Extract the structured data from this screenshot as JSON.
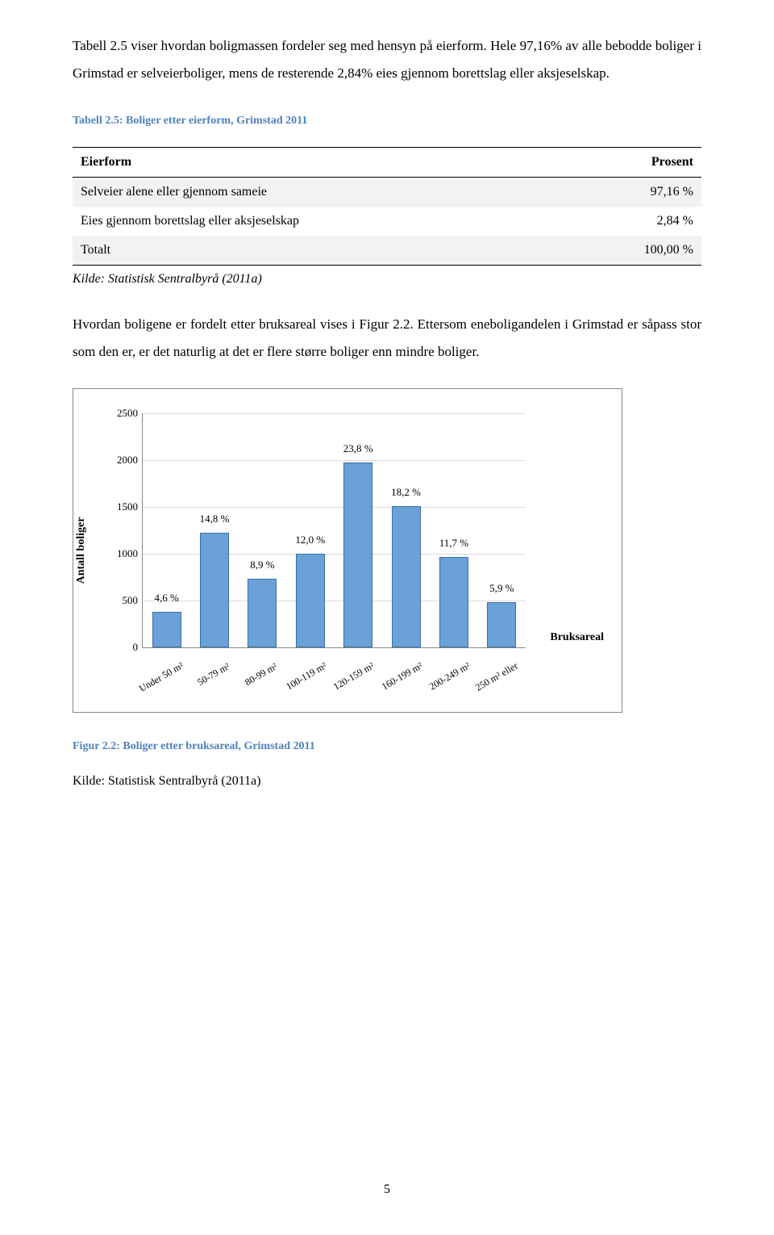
{
  "para1": "Tabell 2.5 viser hvordan boligmassen fordeler seg med hensyn på eierform. Hele 97,16% av alle bebodde boliger i Grimstad er selveierboliger, mens de resterende 2,84% eies gjennom borettslag eller aksjeselskap.",
  "table_caption": "Tabell 2.5: Boliger etter eierform, Grimstad 2011",
  "table": {
    "head_left": "Eierform",
    "head_right": "Prosent",
    "rows": [
      {
        "label": "Selveier alene eller gjennom sameie",
        "value": "97,16 %"
      },
      {
        "label": "Eies gjennom borettslag eller aksjeselskap",
        "value": "2,84 %"
      },
      {
        "label": "Totalt",
        "value": "100,00 %"
      }
    ]
  },
  "table_source": "Kilde: Statistisk Sentralbyrå (2011a)",
  "para2": "Hvordan boligene er fordelt etter bruksareal vises i Figur 2.2. Ettersom eneboligandelen i Grimstad er såpass stor som den er, er det naturlig at det er flere større boliger enn mindre boliger.",
  "chart": {
    "type": "bar",
    "y_axis_label": "Antall boliger",
    "legend_label": "Bruksareal",
    "ylim": [
      0,
      2500
    ],
    "ytick_step": 500,
    "grid_color": "#dcdcdc",
    "bar_fill": "#6aa2d8",
    "bar_border": "#3b6fa3",
    "bars": [
      {
        "cat": "Under 50 m²",
        "pct": "4,6 %",
        "value": 380
      },
      {
        "cat": "50-79 m²",
        "pct": "14,8 %",
        "value": 1230
      },
      {
        "cat": "80-99 m²",
        "pct": "8,9 %",
        "value": 740
      },
      {
        "cat": "100-119 m²",
        "pct": "12,0 %",
        "value": 1000
      },
      {
        "cat": "120-159 m²",
        "pct": "23,8 %",
        "value": 1980
      },
      {
        "cat": "160-199 m²",
        "pct": "18,2 %",
        "value": 1510
      },
      {
        "cat": "200-249 m²",
        "pct": "11,7 %",
        "value": 970
      },
      {
        "cat": "250 m² eller",
        "pct": "5,9 %",
        "value": 490
      }
    ]
  },
  "figure_caption": "Figur 2.2: Boliger etter bruksareal, Grimstad 2011",
  "figure_source": "Kilde: Statistisk Sentralbyrå (2011a)",
  "page_number": "5"
}
